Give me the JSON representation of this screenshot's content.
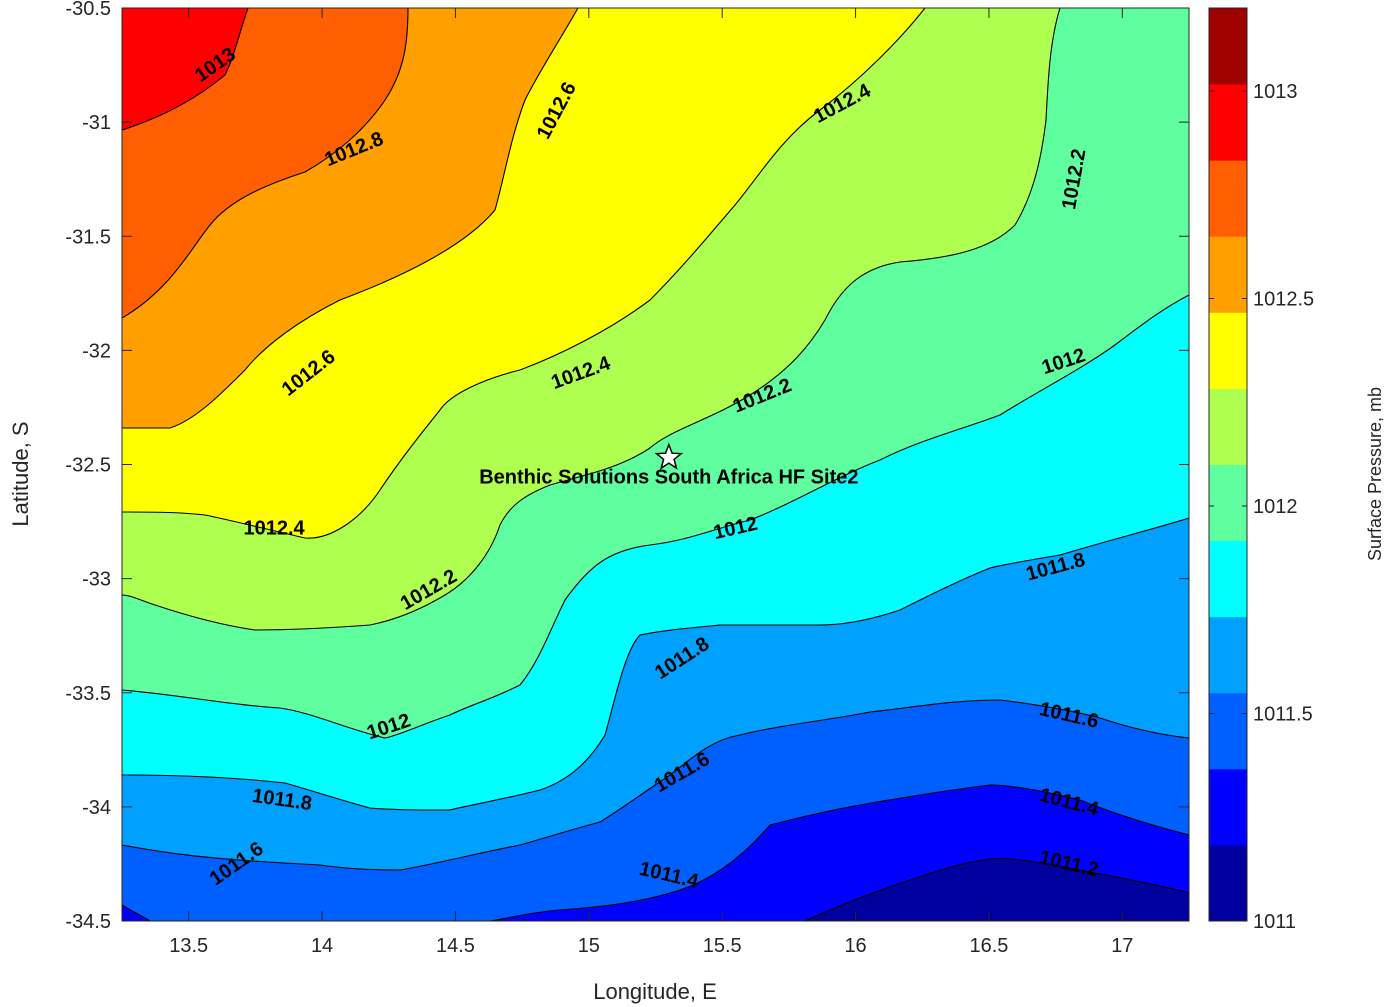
{
  "chart_data": {
    "type": "contour",
    "xlabel": "Longitude, E",
    "ylabel": "Latitude, S",
    "xlim": [
      13.25,
      17.25
    ],
    "ylim": [
      -34.5,
      -30.5
    ],
    "xticks": [
      "13.5",
      "14",
      "14.5",
      "15",
      "15.5",
      "16",
      "16.5",
      "17"
    ],
    "yticks": [
      "-30.5",
      "-31",
      "-31.5",
      "-32",
      "-32.5",
      "-33",
      "-33.5",
      "-34",
      "-34.5"
    ],
    "contour_levels": [
      1011.0,
      1011.1,
      1011.2,
      1011.3,
      1011.4,
      1011.5,
      1011.6,
      1011.7,
      1011.8,
      1011.9,
      1012.0,
      1012.1,
      1012.2,
      1012.3,
      1012.4,
      1012.5,
      1012.6,
      1012.7,
      1012.8,
      1012.9,
      1013.0,
      1013.1,
      1013.2
    ],
    "colorbar": {
      "label": "Surface Pressure, mb",
      "range": [
        1011.0,
        1013.2
      ],
      "ticks": [
        "1011",
        "1011.5",
        "1012",
        "1012.5",
        "1013"
      ],
      "colors": [
        "#00009f",
        "#0000ff",
        "#0060ff",
        "#00a0ff",
        "#00ffff",
        "#5fffa0",
        "#afff50",
        "#ffff00",
        "#ffa000",
        "#ff5f00",
        "#ff0000",
        "#9f0000"
      ]
    },
    "contour_labels": [
      {
        "text": "1013",
        "lon": 13.6,
        "lat": -30.75
      },
      {
        "text": "1012.8",
        "lon": 14.12,
        "lat": -31.12
      },
      {
        "text": "1012.6",
        "lon": 14.88,
        "lat": -30.95
      },
      {
        "text": "1012.4",
        "lon": 15.95,
        "lat": -30.92
      },
      {
        "text": "1012.2",
        "lon": 16.82,
        "lat": -31.25
      },
      {
        "text": "1012.6",
        "lon": 13.95,
        "lat": -32.1
      },
      {
        "text": "1012.4",
        "lon": 14.97,
        "lat": -32.1
      },
      {
        "text": "1012.2",
        "lon": 15.65,
        "lat": -32.2
      },
      {
        "text": "1012",
        "lon": 16.78,
        "lat": -32.05
      },
      {
        "text": "1012.4",
        "lon": 13.82,
        "lat": -32.78
      },
      {
        "text": "1012",
        "lon": 15.55,
        "lat": -32.78
      },
      {
        "text": "1011.8",
        "lon": 16.75,
        "lat": -32.95
      },
      {
        "text": "1012.2",
        "lon": 14.4,
        "lat": -33.05
      },
      {
        "text": "1011.8",
        "lon": 15.35,
        "lat": -33.35
      },
      {
        "text": "1012",
        "lon": 14.25,
        "lat": -33.65
      },
      {
        "text": "1011.6",
        "lon": 16.8,
        "lat": -33.6
      },
      {
        "text": "1011.8",
        "lon": 13.85,
        "lat": -33.97
      },
      {
        "text": "1011.6",
        "lon": 15.35,
        "lat": -33.85
      },
      {
        "text": "1011.4",
        "lon": 16.8,
        "lat": -33.98
      },
      {
        "text": "1011.6",
        "lon": 13.68,
        "lat": -34.25
      },
      {
        "text": "1011.4",
        "lon": 15.3,
        "lat": -34.3
      },
      {
        "text": "1011.2",
        "lon": 16.8,
        "lat": -34.25
      }
    ],
    "annotation": {
      "text": "Benthic Solutions South Africa HF Site2",
      "marker": "star",
      "lon": 15.3,
      "lat": -32.47
    }
  }
}
